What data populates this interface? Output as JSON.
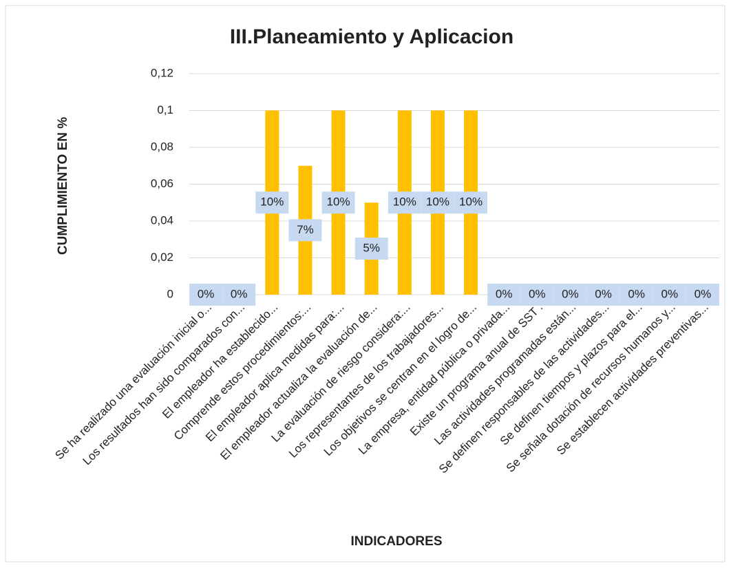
{
  "chart_data": {
    "type": "bar",
    "title": "III.Planeamiento y Aplicacion",
    "y_axis_label": "CUMPLIMIENTO EN %",
    "x_axis_label": "INDICADORES",
    "categories": [
      "Se ha realizado una evaluación inicial o...",
      "Los resultados han sido comparados con...",
      "El empleador ha establecido...",
      "Comprende estos  procedimientos:...",
      "El  empleador aplica  medidas  para:...",
      "El empleador actualiza la evaluación de...",
      "La  evaluación  de  riesgo  considera:...",
      "Los representantes de los trabajadores...",
      "Los objetivos se centran en el logro de...",
      "La empresa, entidad pública o privada...",
      "Existe un programa anual de SST .",
      "Las actividades programadas están...",
      "Se definen responsables de las actividades...",
      "Se  definen  tiempos  y  plazos  para  el...",
      "Se señala dotación de recursos humanos y...",
      "Se establecen actividades preventivas..."
    ],
    "values": [
      0,
      0,
      0.1,
      0.07,
      0.1,
      0.05,
      0.1,
      0.1,
      0.1,
      0,
      0,
      0,
      0,
      0,
      0,
      0
    ],
    "value_labels": [
      "0%",
      "0%",
      "10%",
      "7%",
      "10%",
      "5%",
      "10%",
      "10%",
      "10%",
      "0%",
      "0%",
      "0%",
      "0%",
      "0%",
      "0%",
      "0%"
    ],
    "color": "#ffc000",
    "ylim": [
      0,
      0.12
    ],
    "yticks": [
      0,
      {
        "value": 0.02,
        "label": "0,02"
      },
      {
        "value": 0.04,
        "label": "0,04"
      },
      {
        "value": 0.06,
        "label": "0,06"
      },
      {
        "value": 0.08,
        "label": "0,08"
      },
      {
        "value": 0.1,
        "label": "0,1"
      },
      {
        "value": 0.12,
        "label": "0,12"
      }
    ],
    "grid": true
  }
}
